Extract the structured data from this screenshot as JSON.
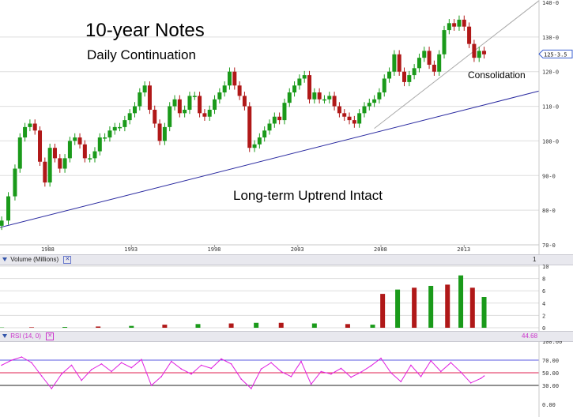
{
  "colors": {
    "up_candle": "#1a9a1a",
    "down_candle": "#b01818",
    "long_trendline": "#2a2aa0",
    "short_trendline": "#aaaaaa",
    "rsi_line": "#e020e0",
    "rsi_guide_70": "#5a5ae0",
    "rsi_guide_50": "#e02050",
    "rsi_guide_30": "#222222",
    "price_tag": "#3a5fd0",
    "grid": "#dddddd"
  },
  "chart_data": [
    {
      "type": "candlestick",
      "title": "10-year Notes",
      "subtitle": "Daily Continuation",
      "annotations": [
        "Long-term Uptrend Intact",
        "Consolidation"
      ],
      "ylim": [
        70,
        140
      ],
      "y_ticks": [
        "70-0",
        "80-0",
        "90-0",
        "100-0",
        "110-0",
        "120-0",
        "130-0",
        "140-0"
      ],
      "x_ticks": [
        "1988",
        "1993",
        "1998",
        "2003",
        "2008",
        "2013"
      ],
      "x_tick_values": [
        1988,
        1993,
        1998,
        2003,
        2008,
        2013
      ],
      "xlim": [
        1985.1,
        2017.5
      ],
      "last_price_label": "125-3.5",
      "last_price": 125.1,
      "x": [
        1985.2,
        1985.6,
        1986.0,
        1986.3,
        1986.6,
        1986.9,
        1987.2,
        1987.5,
        1987.8,
        1988.1,
        1988.4,
        1988.7,
        1989.0,
        1989.3,
        1989.6,
        1989.9,
        1990.2,
        1990.5,
        1990.8,
        1991.1,
        1991.4,
        1991.7,
        1992.0,
        1992.3,
        1992.6,
        1992.9,
        1993.2,
        1993.5,
        1993.8,
        1994.1,
        1994.4,
        1994.7,
        1995.0,
        1995.3,
        1995.6,
        1995.9,
        1996.2,
        1996.5,
        1996.8,
        1997.1,
        1997.4,
        1997.7,
        1998.0,
        1998.3,
        1998.6,
        1998.9,
        1999.2,
        1999.5,
        1999.8,
        2000.1,
        2000.4,
        2000.7,
        2001.0,
        2001.3,
        2001.6,
        2001.9,
        2002.2,
        2002.5,
        2002.8,
        2003.1,
        2003.4,
        2003.7,
        2004.0,
        2004.3,
        2004.6,
        2004.9,
        2005.2,
        2005.5,
        2005.8,
        2006.1,
        2006.4,
        2006.7,
        2007.0,
        2007.3,
        2007.6,
        2007.9,
        2008.2,
        2008.5,
        2008.8,
        2009.1,
        2009.4,
        2009.7,
        2010.0,
        2010.3,
        2010.6,
        2010.9,
        2011.2,
        2011.5,
        2011.8,
        2012.1,
        2012.4,
        2012.7,
        2013.0,
        2013.3,
        2013.6,
        2013.9,
        2014.2
      ],
      "close": [
        77,
        84,
        92,
        101,
        104,
        105,
        103,
        94,
        88,
        98,
        95,
        92,
        95,
        100,
        101,
        99,
        95,
        95,
        97,
        101,
        101,
        103,
        104,
        104,
        106,
        108,
        110,
        114,
        116,
        109,
        105,
        100,
        104,
        110,
        112,
        108,
        109,
        113,
        113,
        108,
        107,
        109,
        112,
        114,
        116,
        120,
        116,
        113,
        110,
        98,
        99,
        101,
        103,
        105,
        107,
        106,
        111,
        114,
        116,
        118,
        119,
        112,
        114,
        112,
        112,
        113,
        110,
        108,
        107,
        106,
        105,
        108,
        110,
        111,
        112,
        114,
        118,
        120,
        125,
        120,
        117,
        119,
        121,
        124,
        126,
        122,
        120,
        125,
        132,
        134,
        133,
        135,
        133,
        128,
        124,
        126,
        125
      ],
      "trendlines": [
        {
          "name": "Long-term Uptrend",
          "from": [
            1985.1,
            75.0
          ],
          "to": [
            2017.5,
            114.4
          ]
        },
        {
          "name": "Short-term Uptrend",
          "from": [
            2007.6,
            103.6
          ],
          "to": [
            2017.5,
            140.5
          ]
        }
      ]
    },
    {
      "type": "bar",
      "title": "Volume (Millions)",
      "scale_badge": "1",
      "ylim": [
        0,
        10
      ],
      "y_ticks": [
        "0",
        "2",
        "4",
        "6",
        "8",
        "10"
      ],
      "x": [
        1985.2,
        1987.0,
        1989.0,
        1991.0,
        1993.0,
        1995.0,
        1997.0,
        1999.0,
        2000.5,
        2002.0,
        2004.0,
        2006.0,
        2007.5,
        2008.1,
        2009.0,
        2010.0,
        2011.0,
        2012.0,
        2012.8,
        2013.5,
        2014.2
      ],
      "values": [
        0.05,
        0.08,
        0.12,
        0.2,
        0.3,
        0.5,
        0.6,
        0.7,
        0.8,
        0.8,
        0.7,
        0.6,
        0.5,
        5.5,
        6.2,
        6.5,
        6.8,
        7.0,
        8.5,
        6.5,
        5.0
      ]
    },
    {
      "type": "line",
      "title": "RSI (14, 0)",
      "last_value_label": "44.68",
      "ylim": [
        0,
        100
      ],
      "y_ticks": [
        "0.00",
        "30.00",
        "50.00",
        "70.00",
        "100.00"
      ],
      "guides": [
        70,
        50,
        30
      ],
      "x": [
        1985.2,
        1985.8,
        1986.4,
        1987.0,
        1987.6,
        1988.2,
        1988.8,
        1989.4,
        1990.0,
        1990.6,
        1991.2,
        1991.8,
        1992.4,
        1993.0,
        1993.6,
        1994.2,
        1994.8,
        1995.4,
        1996.0,
        1996.6,
        1997.2,
        1997.8,
        1998.4,
        1999.0,
        1999.6,
        2000.2,
        2000.8,
        2001.4,
        2002.0,
        2002.6,
        2003.2,
        2003.8,
        2004.4,
        2005.0,
        2005.6,
        2006.2,
        2006.8,
        2007.4,
        2008.0,
        2008.6,
        2009.2,
        2009.8,
        2010.4,
        2011.0,
        2011.6,
        2012.2,
        2012.8,
        2013.4,
        2014.0,
        2014.2
      ],
      "values": [
        62,
        70,
        75,
        66,
        45,
        25,
        48,
        62,
        38,
        55,
        64,
        52,
        66,
        58,
        71,
        30,
        44,
        68,
        56,
        48,
        62,
        57,
        72,
        64,
        40,
        25,
        56,
        66,
        52,
        44,
        68,
        32,
        52,
        48,
        57,
        43,
        51,
        61,
        73,
        50,
        36,
        62,
        44,
        69,
        52,
        66,
        51,
        34,
        41,
        45
      ]
    }
  ]
}
